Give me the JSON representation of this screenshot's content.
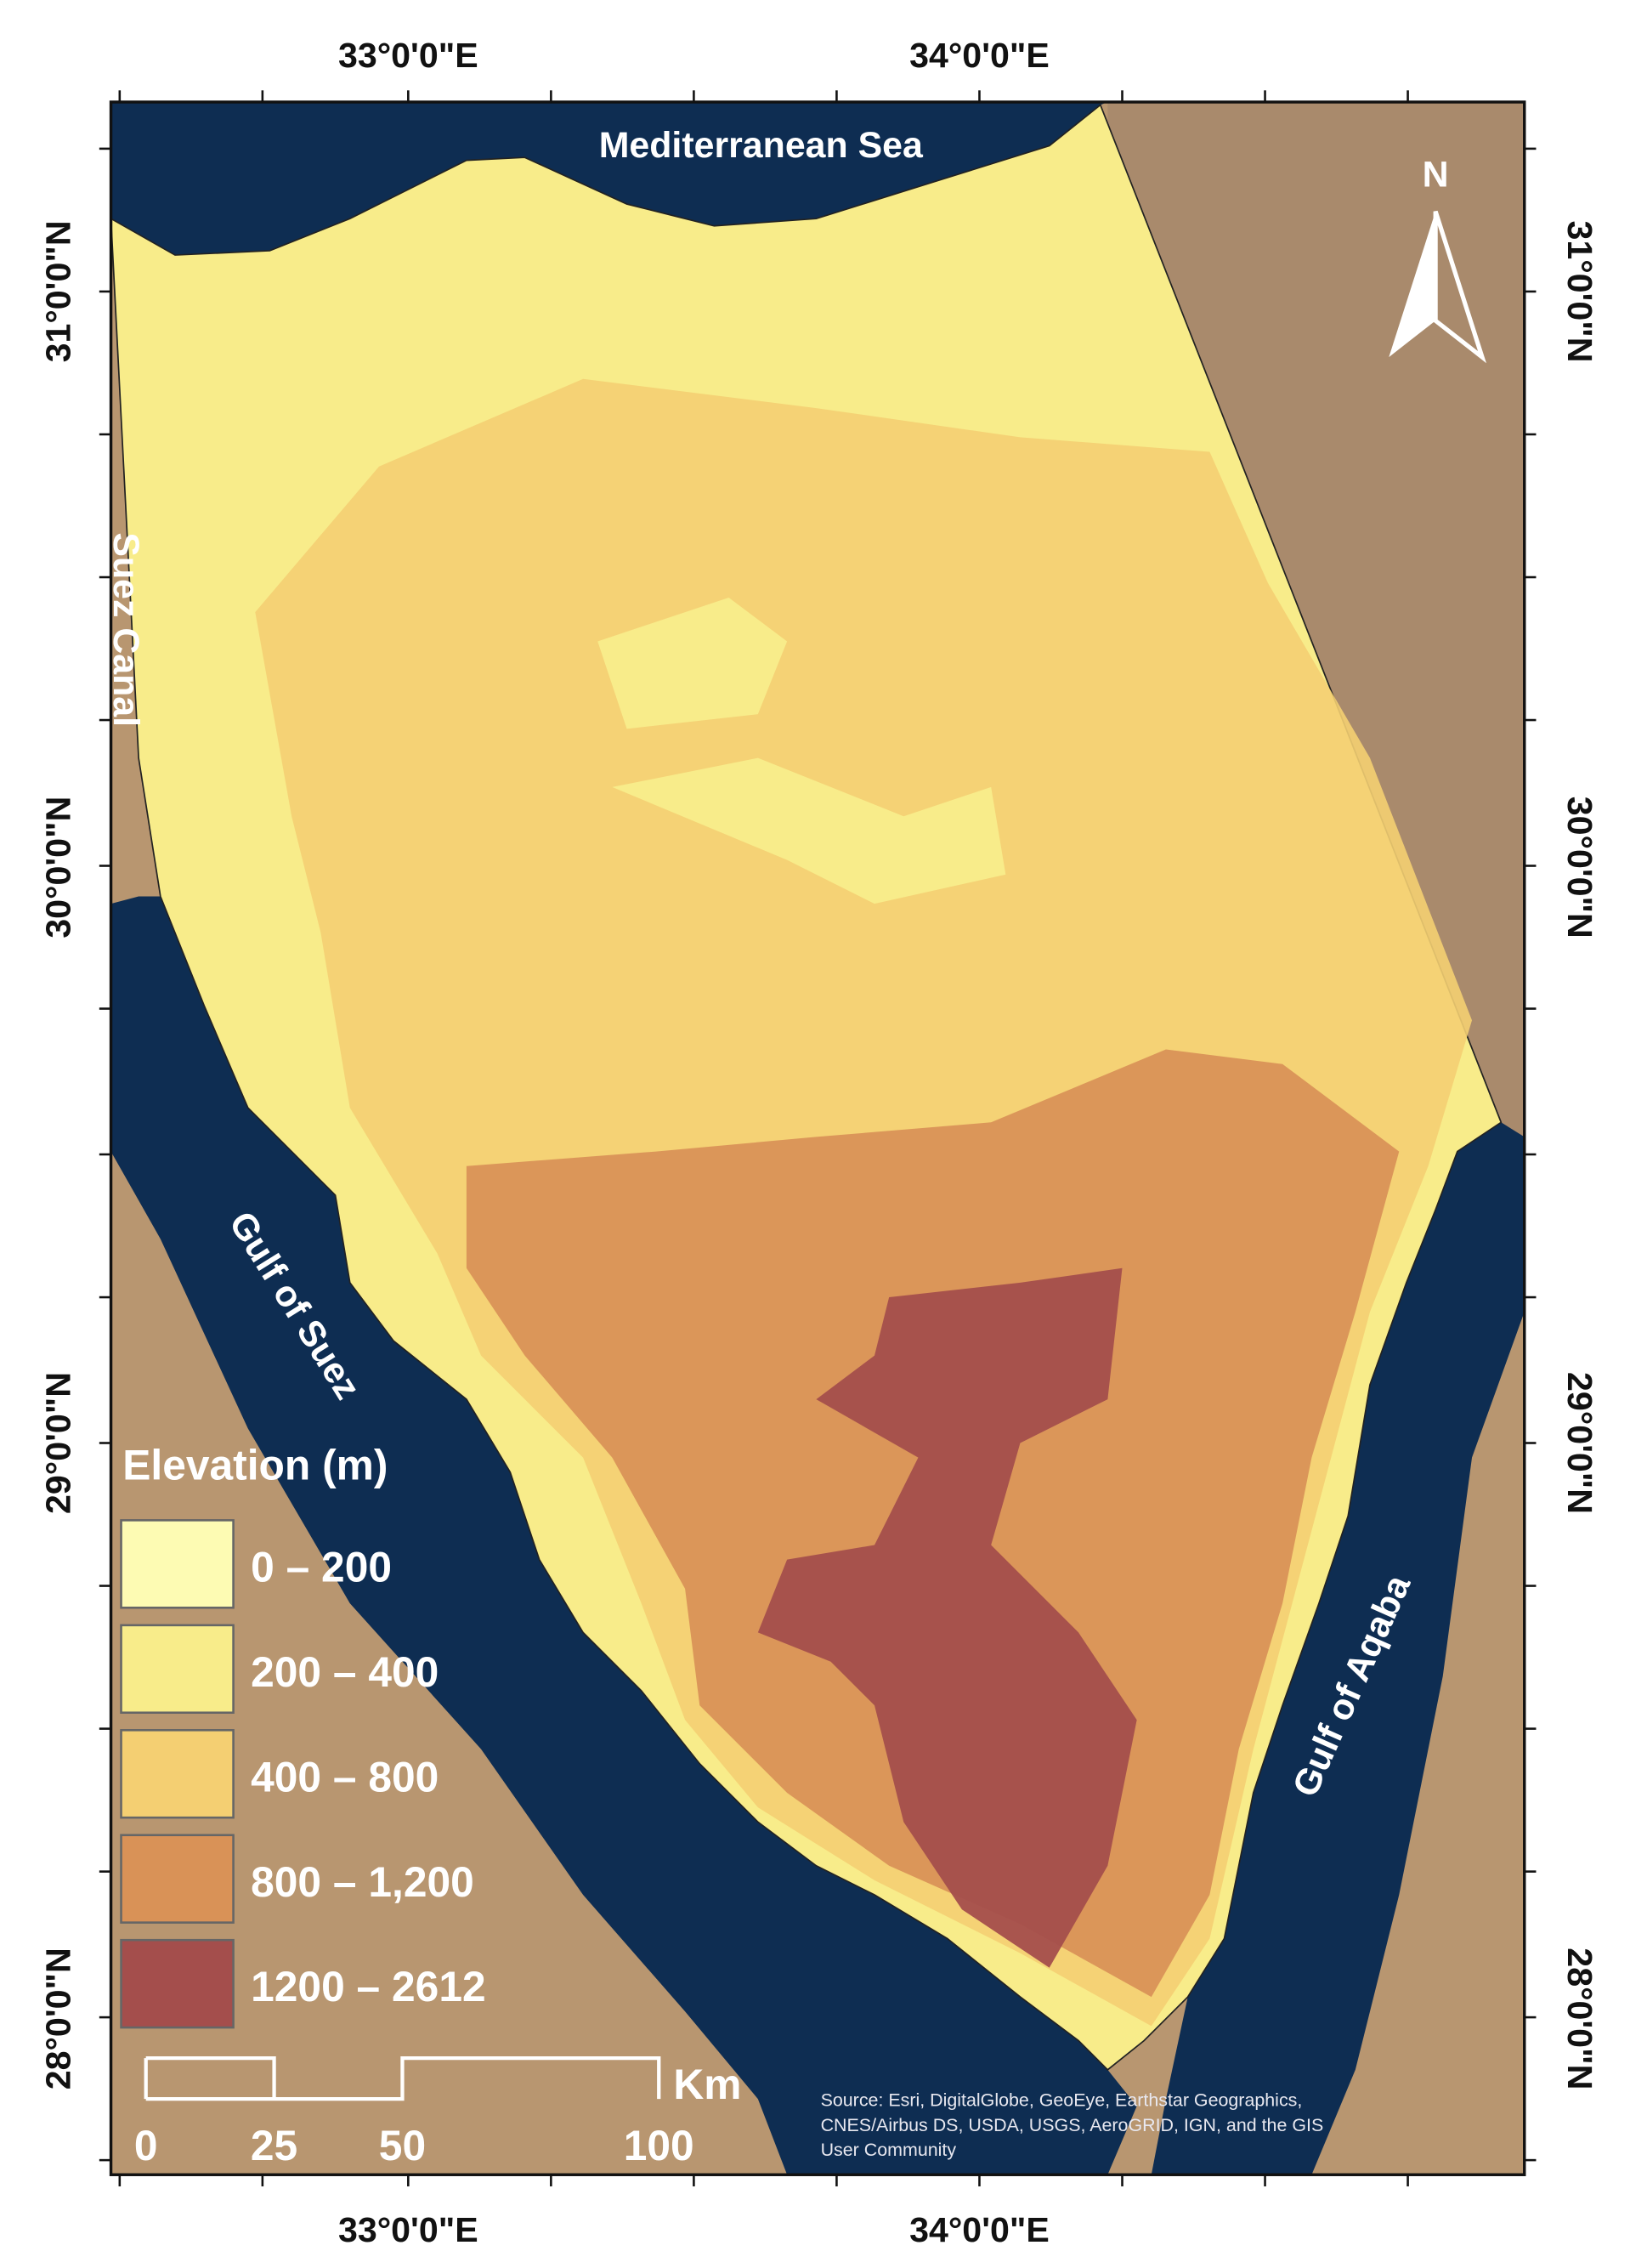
{
  "graticule": {
    "top": [
      "33°0'0\"E",
      "34°0'0\"E"
    ],
    "bottom": [
      "33°0'0\"E",
      "34°0'0\"E"
    ],
    "left": [
      "31°0'0\"N",
      "30°0'0\"N",
      "29°0'0\"N",
      "28°0'0\"N"
    ],
    "right": [
      "31°0'0\"N",
      "30°0'0\"N",
      "29°0'0\"N",
      "28°0'0\"N"
    ]
  },
  "places": [
    "Mediterranean Sea",
    "Suez Canal",
    "Gulf of Suez",
    "Gulf of Aqaba"
  ],
  "legend": {
    "title": "Elevation (m)",
    "items": [
      {
        "label": "0 – 200",
        "color": "#fdfbb3"
      },
      {
        "label": "200 – 400",
        "color": "#f8ec8a"
      },
      {
        "label": "400 – 800",
        "color": "#f4cf72"
      },
      {
        "label": "800 – 1,200",
        "color": "#d99257"
      },
      {
        "label": "1200 – 2612",
        "color": "#a44e4c"
      }
    ]
  },
  "scale_bar": {
    "labels": [
      "0",
      "25",
      "50",
      "100"
    ],
    "unit": "Km"
  },
  "north_arrow": "N",
  "source": [
    "Source: Esri, DigitalGlobe, GeoEye, Earthstar Geographics,",
    "CNES/Airbus DS, USDA, USGS, AeroGRID, IGN, and the GIS",
    "User Community"
  ]
}
